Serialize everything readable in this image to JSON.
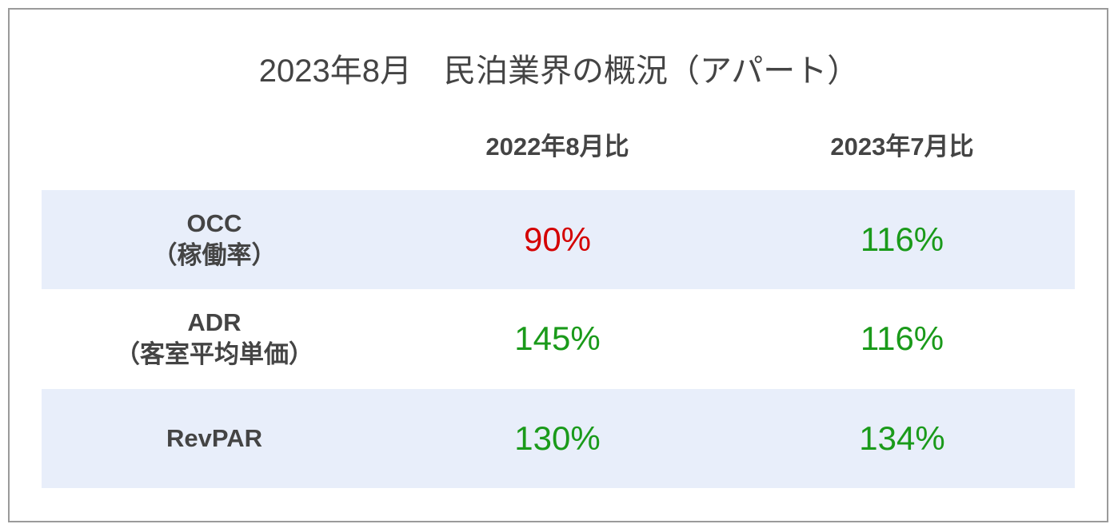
{
  "title": "2023年8月　民泊業界の概況（アパート）",
  "headers": [
    "2022年8月比",
    "2023年7月比"
  ],
  "colors": {
    "positive": "#1a9a1a",
    "negative": "#d40000",
    "row_shade": "#e8eefa"
  },
  "rows": [
    {
      "label": "OCC",
      "sublabel": "（稼働率）",
      "values": [
        "90%",
        "116%"
      ],
      "status": [
        "negative",
        "positive"
      ]
    },
    {
      "label": "ADR",
      "sublabel": "（客室平均単価）",
      "values": [
        "145%",
        "116%"
      ],
      "status": [
        "positive",
        "positive"
      ]
    },
    {
      "label": "RevPAR",
      "sublabel": "",
      "values": [
        "130%",
        "134%"
      ],
      "status": [
        "positive",
        "positive"
      ]
    }
  ]
}
